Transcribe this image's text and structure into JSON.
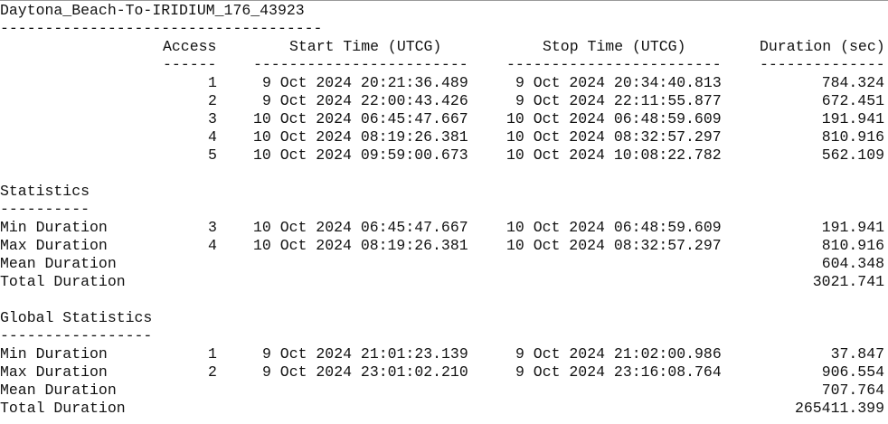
{
  "report": {
    "title": "Daytona_Beach-To-IRIDIUM_176_43923",
    "title_rule": "------------------------------------",
    "columns": {
      "access": "Access",
      "start": "Start Time (UTCG)",
      "stop": "Stop Time (UTCG)",
      "duration": "Duration (sec)"
    },
    "column_rules": {
      "access": "------",
      "start": "------------------------",
      "stop": "------------------------",
      "duration": "--------------"
    },
    "rows": [
      {
        "access": "1",
        "start": "9 Oct 2024 20:21:36.489",
        "stop": "9 Oct 2024 20:34:40.813",
        "duration": "784.324"
      },
      {
        "access": "2",
        "start": "9 Oct 2024 22:00:43.426",
        "stop": "9 Oct 2024 22:11:55.877",
        "duration": "672.451"
      },
      {
        "access": "3",
        "start": "10 Oct 2024 06:45:47.667",
        "stop": "10 Oct 2024 06:48:59.609",
        "duration": "191.941"
      },
      {
        "access": "4",
        "start": "10 Oct 2024 08:19:26.381",
        "stop": "10 Oct 2024 08:32:57.297",
        "duration": "810.916"
      },
      {
        "access": "5",
        "start": "10 Oct 2024 09:59:00.673",
        "stop": "10 Oct 2024 10:08:22.782",
        "duration": "562.109"
      }
    ],
    "statistics": {
      "heading": "Statistics",
      "rule": "----------",
      "rows": [
        {
          "label": "Min Duration",
          "access": "3",
          "start": "10 Oct 2024 06:45:47.667",
          "stop": "10 Oct 2024 06:48:59.609",
          "duration": "191.941"
        },
        {
          "label": "Max Duration",
          "access": "4",
          "start": "10 Oct 2024 08:19:26.381",
          "stop": "10 Oct 2024 08:32:57.297",
          "duration": "810.916"
        },
        {
          "label": "Mean Duration",
          "access": "",
          "start": "",
          "stop": "",
          "duration": "604.348"
        },
        {
          "label": "Total Duration",
          "access": "",
          "start": "",
          "stop": "",
          "duration": "3021.741"
        }
      ]
    },
    "global_statistics": {
      "heading": "Global Statistics",
      "rule": "-----------------",
      "rows": [
        {
          "label": "Min Duration",
          "access": "1",
          "start": "9 Oct 2024 21:01:23.139",
          "stop": "9 Oct 2024 21:02:00.986",
          "duration": "37.847"
        },
        {
          "label": "Max Duration",
          "access": "2",
          "start": "9 Oct 2024 23:01:02.210",
          "stop": "9 Oct 2024 23:16:08.764",
          "duration": "906.554"
        },
        {
          "label": "Mean Duration",
          "access": "",
          "start": "",
          "stop": "",
          "duration": "707.764"
        },
        {
          "label": "Total Duration",
          "access": "",
          "start": "",
          "stop": "",
          "duration": "265411.399"
        }
      ]
    }
  }
}
